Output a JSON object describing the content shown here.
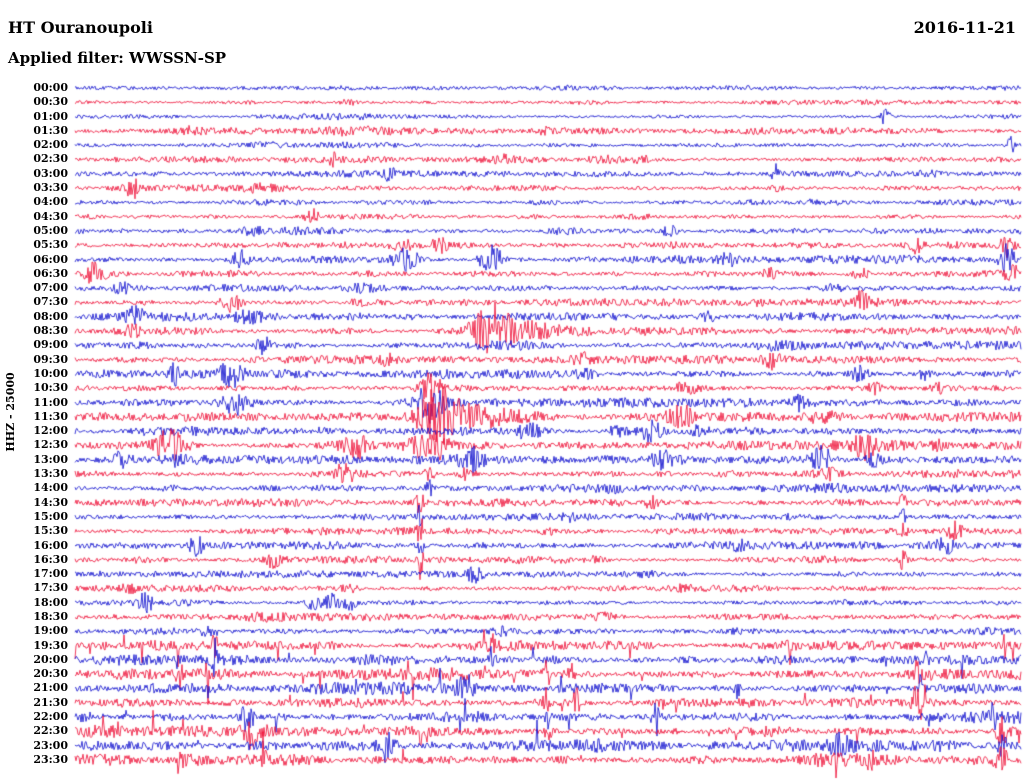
{
  "header": {
    "station": "HT Ouranoupoli",
    "date": "2016-11-21",
    "filter_line": "Applied filter: WWSSN-SP"
  },
  "axis": {
    "channel_scale": "HHZ - 25000"
  },
  "colors": {
    "trace_red": "#ee0a32",
    "trace_blue": "#0a0acd",
    "text": "#000000",
    "background": "#ffffff"
  },
  "chart_data": {
    "type": "line",
    "subtype": "helicorder",
    "title": "HT Ouranoupoli 2016-11-21 HHZ helicorder (WWSSN-SP filtered)",
    "row_duration_minutes": 30,
    "first_row": "00:00",
    "last_row": "23:30",
    "ylabel": "HHZ - 25000",
    "events_format": "[x_fraction_of_row, gaussian_width_fraction, amplitude_px]",
    "rows": [
      {
        "label": "00:00",
        "color": "blue",
        "noise": 1.6,
        "spiky": false,
        "events": [
          [
            0.38,
            0.05,
            1.0
          ]
        ]
      },
      {
        "label": "00:30",
        "color": "red",
        "noise": 1.6,
        "spiky": false,
        "events": [
          [
            0.29,
            0.01,
            2.5
          ],
          [
            0.55,
            0.02,
            1.5
          ]
        ]
      },
      {
        "label": "01:00",
        "color": "blue",
        "noise": 1.7,
        "spiky": false,
        "events": [
          [
            0.857,
            0.004,
            11
          ],
          [
            0.3,
            0.03,
            1.5
          ]
        ]
      },
      {
        "label": "01:30",
        "color": "red",
        "noise": 2.0,
        "spiky": false,
        "events": [
          [
            0.12,
            0.02,
            2.5
          ],
          [
            0.3,
            0.04,
            2.5
          ],
          [
            0.5,
            0.01,
            3
          ]
        ]
      },
      {
        "label": "02:00",
        "color": "blue",
        "noise": 2.0,
        "spiky": false,
        "events": [
          [
            0.99,
            0.004,
            14
          ],
          [
            0.2,
            0.02,
            2
          ]
        ]
      },
      {
        "label": "02:30",
        "color": "red",
        "noise": 2.2,
        "spiky": false,
        "events": [
          [
            0.27,
            0.008,
            5
          ],
          [
            0.455,
            0.008,
            5
          ],
          [
            0.56,
            0.015,
            4
          ],
          [
            0.6,
            0.01,
            3
          ]
        ]
      },
      {
        "label": "03:00",
        "color": "blue",
        "noise": 2.2,
        "spiky": false,
        "events": [
          [
            0.33,
            0.008,
            5
          ],
          [
            0.74,
            0.004,
            9
          ],
          [
            0.9,
            0.02,
            2
          ]
        ]
      },
      {
        "label": "03:30",
        "color": "red",
        "noise": 2.2,
        "spiky": false,
        "events": [
          [
            0.062,
            0.008,
            9
          ],
          [
            0.2,
            0.02,
            2.5
          ],
          [
            0.74,
            0.01,
            3
          ]
        ]
      },
      {
        "label": "04:00",
        "color": "blue",
        "noise": 1.9,
        "spiky": false,
        "events": [
          [
            0.5,
            0.03,
            1.5
          ],
          [
            0.78,
            0.008,
            3
          ]
        ]
      },
      {
        "label": "04:30",
        "color": "red",
        "noise": 2.0,
        "spiky": false,
        "events": [
          [
            0.25,
            0.006,
            10
          ],
          [
            0.6,
            0.02,
            2
          ]
        ]
      },
      {
        "label": "05:00",
        "color": "blue",
        "noise": 2.6,
        "spiky": false,
        "events": [
          [
            0.19,
            0.01,
            4
          ],
          [
            0.52,
            0.02,
            3
          ],
          [
            0.63,
            0.008,
            6
          ]
        ]
      },
      {
        "label": "05:30",
        "color": "red",
        "noise": 2.6,
        "spiky": false,
        "events": [
          [
            0.345,
            0.015,
            5
          ],
          [
            0.385,
            0.01,
            6
          ],
          [
            0.89,
            0.008,
            8
          ],
          [
            0.985,
            0.006,
            10
          ]
        ]
      },
      {
        "label": "06:00",
        "color": "blue",
        "noise": 2.6,
        "spiky": false,
        "events": [
          [
            0.175,
            0.01,
            9
          ],
          [
            0.35,
            0.012,
            12
          ],
          [
            0.44,
            0.012,
            14
          ],
          [
            0.69,
            0.01,
            6
          ],
          [
            0.985,
            0.008,
            14
          ]
        ]
      },
      {
        "label": "06:30",
        "color": "red",
        "noise": 2.6,
        "spiky": false,
        "events": [
          [
            0.02,
            0.01,
            10
          ],
          [
            0.735,
            0.01,
            6
          ],
          [
            0.83,
            0.008,
            7
          ],
          [
            0.99,
            0.006,
            8
          ]
        ]
      },
      {
        "label": "07:00",
        "color": "blue",
        "noise": 2.4,
        "spiky": false,
        "events": [
          [
            0.05,
            0.008,
            5
          ],
          [
            0.3,
            0.02,
            3
          ],
          [
            0.8,
            0.01,
            4
          ]
        ]
      },
      {
        "label": "07:30",
        "color": "red",
        "noise": 2.6,
        "spiky": false,
        "events": [
          [
            0.165,
            0.012,
            9
          ],
          [
            0.3,
            0.01,
            4
          ],
          [
            0.83,
            0.008,
            10
          ]
        ]
      },
      {
        "label": "08:00",
        "color": "blue",
        "noise": 2.6,
        "spiky": false,
        "events": [
          [
            0.063,
            0.01,
            8
          ],
          [
            0.185,
            0.012,
            5
          ],
          [
            0.67,
            0.008,
            5
          ]
        ]
      },
      {
        "label": "08:30",
        "color": "red",
        "noise": 2.6,
        "spiky": false,
        "events": [
          [
            0.44,
            0.018,
            26
          ],
          [
            0.47,
            0.04,
            8
          ],
          [
            0.06,
            0.01,
            4
          ],
          [
            0.99,
            0.006,
            6
          ]
        ]
      },
      {
        "label": "09:00",
        "color": "blue",
        "noise": 2.6,
        "spiky": false,
        "events": [
          [
            0.2,
            0.008,
            7
          ],
          [
            0.45,
            0.03,
            2
          ],
          [
            0.75,
            0.02,
            2.5
          ]
        ]
      },
      {
        "label": "09:30",
        "color": "red",
        "noise": 2.6,
        "spiky": false,
        "events": [
          [
            0.33,
            0.01,
            5
          ],
          [
            0.535,
            0.01,
            4
          ],
          [
            0.735,
            0.01,
            7
          ]
        ]
      },
      {
        "label": "10:00",
        "color": "blue",
        "noise": 2.8,
        "spiky": false,
        "events": [
          [
            0.105,
            0.004,
            12
          ],
          [
            0.165,
            0.012,
            12
          ],
          [
            0.54,
            0.01,
            5
          ],
          [
            0.83,
            0.01,
            8
          ],
          [
            0.9,
            0.008,
            5
          ]
        ]
      },
      {
        "label": "10:30",
        "color": "red",
        "noise": 2.8,
        "spiky": false,
        "events": [
          [
            0.375,
            0.012,
            14
          ],
          [
            0.645,
            0.01,
            5
          ],
          [
            0.846,
            0.01,
            9
          ],
          [
            0.91,
            0.008,
            5
          ]
        ]
      },
      {
        "label": "11:00",
        "color": "blue",
        "noise": 2.8,
        "spiky": false,
        "events": [
          [
            0.17,
            0.015,
            13
          ],
          [
            0.375,
            0.015,
            18
          ],
          [
            0.77,
            0.01,
            9
          ]
        ]
      },
      {
        "label": "11:30",
        "color": "red",
        "noise": 3.0,
        "spiky": false,
        "events": [
          [
            0.385,
            0.02,
            26
          ],
          [
            0.42,
            0.05,
            8
          ],
          [
            0.64,
            0.012,
            11
          ],
          [
            0.79,
            0.01,
            5
          ]
        ]
      },
      {
        "label": "12:00",
        "color": "blue",
        "noise": 3.0,
        "spiky": false,
        "events": [
          [
            0.48,
            0.012,
            9
          ],
          [
            0.575,
            0.01,
            6
          ],
          [
            0.61,
            0.012,
            10
          ],
          [
            0.66,
            0.01,
            5
          ]
        ]
      },
      {
        "label": "12:30",
        "color": "red",
        "noise": 3.0,
        "spiky": false,
        "events": [
          [
            0.1,
            0.015,
            15
          ],
          [
            0.3,
            0.012,
            12
          ],
          [
            0.375,
            0.02,
            18
          ],
          [
            0.835,
            0.012,
            11
          ],
          [
            0.91,
            0.008,
            6
          ]
        ]
      },
      {
        "label": "13:00",
        "color": "blue",
        "noise": 2.8,
        "spiky": false,
        "events": [
          [
            0.05,
            0.01,
            9
          ],
          [
            0.105,
            0.008,
            6
          ],
          [
            0.42,
            0.012,
            10
          ],
          [
            0.62,
            0.01,
            8
          ],
          [
            0.79,
            0.012,
            13
          ],
          [
            0.845,
            0.008,
            7
          ]
        ]
      },
      {
        "label": "13:30",
        "color": "red",
        "noise": 2.8,
        "spiky": false,
        "events": [
          [
            0.285,
            0.012,
            10
          ],
          [
            0.375,
            0.006,
            8
          ],
          [
            0.415,
            0.008,
            7
          ],
          [
            0.8,
            0.01,
            4
          ]
        ]
      },
      {
        "label": "14:00",
        "color": "blue",
        "noise": 2.4,
        "spiky": false,
        "events": [
          [
            0.375,
            0.004,
            6
          ],
          [
            0.57,
            0.01,
            3
          ],
          [
            0.8,
            0.015,
            2.5
          ]
        ]
      },
      {
        "label": "14:30",
        "color": "red",
        "noise": 2.4,
        "spiky": false,
        "events": [
          [
            0.365,
            0.003,
            16
          ],
          [
            0.61,
            0.008,
            5
          ],
          [
            0.875,
            0.003,
            12
          ]
        ]
      },
      {
        "label": "15:00",
        "color": "blue",
        "noise": 2.4,
        "spiky": false,
        "events": [
          [
            0.365,
            0.003,
            12
          ],
          [
            0.52,
            0.01,
            3
          ],
          [
            0.875,
            0.003,
            8
          ]
        ]
      },
      {
        "label": "15:30",
        "color": "red",
        "noise": 2.4,
        "spiky": false,
        "events": [
          [
            0.365,
            0.003,
            14
          ],
          [
            0.5,
            0.01,
            3
          ],
          [
            0.875,
            0.003,
            14
          ],
          [
            0.93,
            0.008,
            8
          ]
        ]
      },
      {
        "label": "16:00",
        "color": "blue",
        "noise": 2.4,
        "spiky": false,
        "events": [
          [
            0.127,
            0.008,
            9
          ],
          [
            0.365,
            0.003,
            10
          ],
          [
            0.7,
            0.008,
            6
          ],
          [
            0.92,
            0.008,
            7
          ]
        ]
      },
      {
        "label": "16:30",
        "color": "red",
        "noise": 2.4,
        "spiky": false,
        "events": [
          [
            0.21,
            0.008,
            6
          ],
          [
            0.365,
            0.003,
            18
          ],
          [
            0.55,
            0.01,
            3
          ],
          [
            0.875,
            0.003,
            10
          ]
        ]
      },
      {
        "label": "17:00",
        "color": "blue",
        "noise": 2.2,
        "spiky": false,
        "events": [
          [
            0.423,
            0.008,
            8
          ],
          [
            0.6,
            0.02,
            2
          ]
        ]
      },
      {
        "label": "17:30",
        "color": "red",
        "noise": 2.2,
        "spiky": false,
        "events": [
          [
            0.058,
            0.008,
            6
          ],
          [
            0.29,
            0.01,
            3
          ],
          [
            0.64,
            0.015,
            2.5
          ]
        ]
      },
      {
        "label": "18:00",
        "color": "blue",
        "noise": 2.4,
        "spiky": false,
        "events": [
          [
            0.074,
            0.008,
            10
          ],
          [
            0.25,
            0.006,
            8
          ],
          [
            0.27,
            0.01,
            9
          ],
          [
            0.29,
            0.006,
            8
          ]
        ]
      },
      {
        "label": "18:30",
        "color": "red",
        "noise": 2.4,
        "spiky": false,
        "events": [
          [
            0.2,
            0.02,
            2.5
          ],
          [
            0.56,
            0.01,
            3
          ]
        ]
      },
      {
        "label": "19:00",
        "color": "blue",
        "noise": 2.4,
        "spiky": false,
        "events": [
          [
            0.143,
            0.008,
            7
          ],
          [
            0.45,
            0.01,
            3
          ],
          [
            0.7,
            0.02,
            2
          ]
        ]
      },
      {
        "label": "19:30",
        "color": "red",
        "noise": 3.2,
        "spiky": true,
        "events": [
          [
            0.148,
            0.003,
            14
          ],
          [
            0.44,
            0.003,
            10
          ]
        ]
      },
      {
        "label": "20:00",
        "color": "blue",
        "noise": 3.4,
        "spiky": true,
        "events": [
          [
            0.148,
            0.003,
            18
          ],
          [
            0.44,
            0.004,
            10
          ],
          [
            0.9,
            0.003,
            8
          ]
        ]
      },
      {
        "label": "20:30",
        "color": "red",
        "noise": 3.8,
        "spiky": true,
        "events": [
          [
            0.11,
            0.003,
            12
          ],
          [
            0.5,
            0.003,
            16
          ],
          [
            0.525,
            0.003,
            14
          ],
          [
            0.89,
            0.003,
            12
          ]
        ]
      },
      {
        "label": "21:00",
        "color": "blue",
        "noise": 3.8,
        "spiky": true,
        "events": [
          [
            0.413,
            0.01,
            11
          ],
          [
            0.7,
            0.003,
            12
          ],
          [
            0.894,
            0.003,
            18
          ]
        ]
      },
      {
        "label": "21:30",
        "color": "red",
        "noise": 4.0,
        "spiky": true,
        "events": [
          [
            0.497,
            0.003,
            18
          ],
          [
            0.53,
            0.003,
            14
          ],
          [
            0.889,
            0.004,
            20
          ]
        ]
      },
      {
        "label": "22:00",
        "color": "blue",
        "noise": 4.0,
        "spiky": true,
        "events": [
          [
            0.18,
            0.008,
            12
          ],
          [
            0.5,
            0.003,
            14
          ],
          [
            0.614,
            0.004,
            18
          ],
          [
            0.97,
            0.004,
            12
          ]
        ]
      },
      {
        "label": "22:30",
        "color": "red",
        "noise": 4.2,
        "spiky": true,
        "events": [
          [
            0.185,
            0.008,
            14
          ],
          [
            0.365,
            0.003,
            12
          ],
          [
            0.5,
            0.003,
            12
          ],
          [
            0.98,
            0.006,
            16
          ]
        ]
      },
      {
        "label": "23:00",
        "color": "blue",
        "noise": 4.2,
        "spiky": true,
        "events": [
          [
            0.328,
            0.008,
            13
          ],
          [
            0.81,
            0.006,
            12
          ],
          [
            0.98,
            0.004,
            10
          ]
        ]
      },
      {
        "label": "23:30",
        "color": "red",
        "noise": 4.2,
        "spiky": true,
        "events": [
          [
            0.11,
            0.004,
            10
          ],
          [
            0.2,
            0.004,
            12
          ],
          [
            0.84,
            0.004,
            10
          ],
          [
            0.98,
            0.006,
            14
          ]
        ]
      }
    ]
  }
}
